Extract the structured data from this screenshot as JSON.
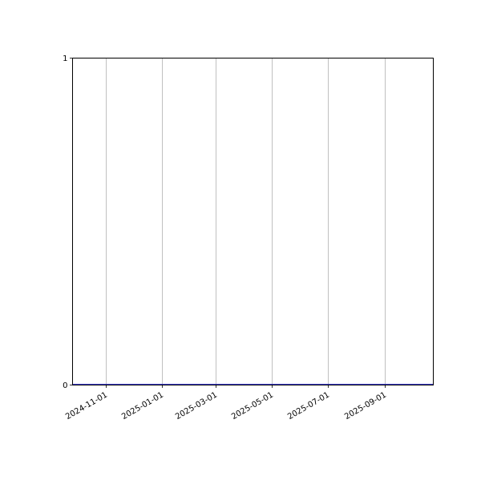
{
  "chart_data": {
    "type": "line",
    "title": "",
    "xlabel": "",
    "ylabel": "",
    "x_type": "date",
    "xlim": [
      "2024-09-26",
      "2025-10-24"
    ],
    "ylim": [
      0,
      1
    ],
    "x_ticks": [
      "2024-11-01",
      "2025-01-01",
      "2025-03-01",
      "2025-05-01",
      "2025-07-01",
      "2025-09-01"
    ],
    "y_ticks": [
      "0",
      "1"
    ],
    "grid": "vertical",
    "series": [
      {
        "x": [
          "2024-09-26",
          "2025-10-24"
        ],
        "y": [
          0,
          0
        ],
        "color": "#0000cc"
      }
    ],
    "colors": {
      "grid": "#b0b0b0",
      "axes": "#000000"
    }
  }
}
